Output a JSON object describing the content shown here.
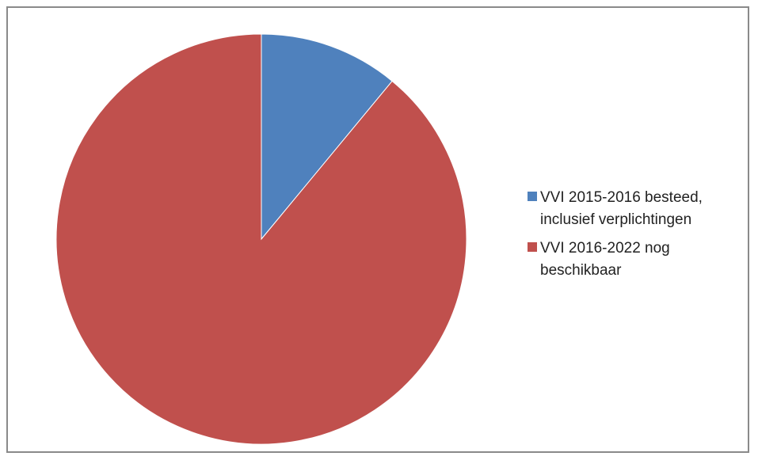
{
  "chart_data": {
    "type": "pie",
    "slices": [
      {
        "label": "VVI 2015-2016 besteed, inclusief verplichtingen",
        "value": 11,
        "color": "#4F81BD"
      },
      {
        "label": "VVI 2016-2022 nog beschikbaar",
        "value": 89,
        "color": "#C0504D"
      }
    ],
    "start_angle_deg": 0,
    "direction": "clockwise",
    "legend": "right"
  }
}
